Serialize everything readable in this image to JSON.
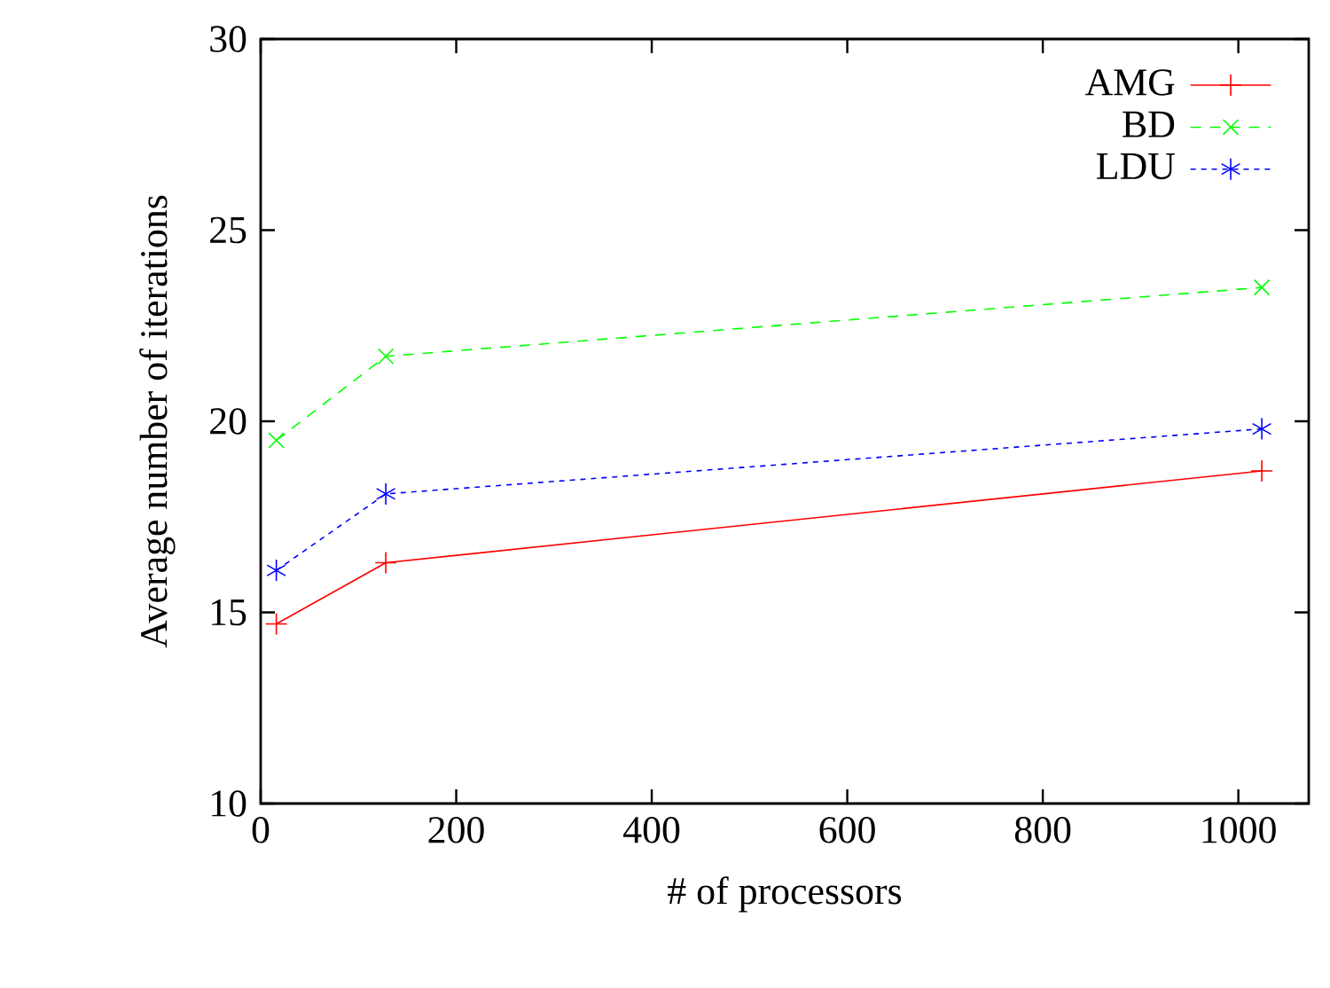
{
  "chart_data": {
    "type": "line",
    "xlabel": "# of processors",
    "ylabel": "Average number of iterations",
    "x": [
      16,
      128,
      1024
    ],
    "series": [
      {
        "name": "AMG",
        "color": "#ff0000",
        "values": [
          14.7,
          16.3,
          18.7
        ],
        "line_style": "solid"
      },
      {
        "name": "BD",
        "color": "#00ff00",
        "values": [
          19.5,
          21.7,
          23.5
        ],
        "line_style": "dashed"
      },
      {
        "name": "LDU",
        "color": "#0000ff",
        "values": [
          16.1,
          18.1,
          19.8
        ],
        "line_style": "dotted"
      }
    ],
    "xlim": [
      0,
      1072
    ],
    "ylim": [
      10,
      30
    ],
    "xticks": [
      0,
      200,
      400,
      600,
      800,
      1000
    ],
    "yticks": [
      10,
      15,
      20,
      25,
      30
    ],
    "grid": false,
    "legend": "top right",
    "marker": "cross"
  }
}
